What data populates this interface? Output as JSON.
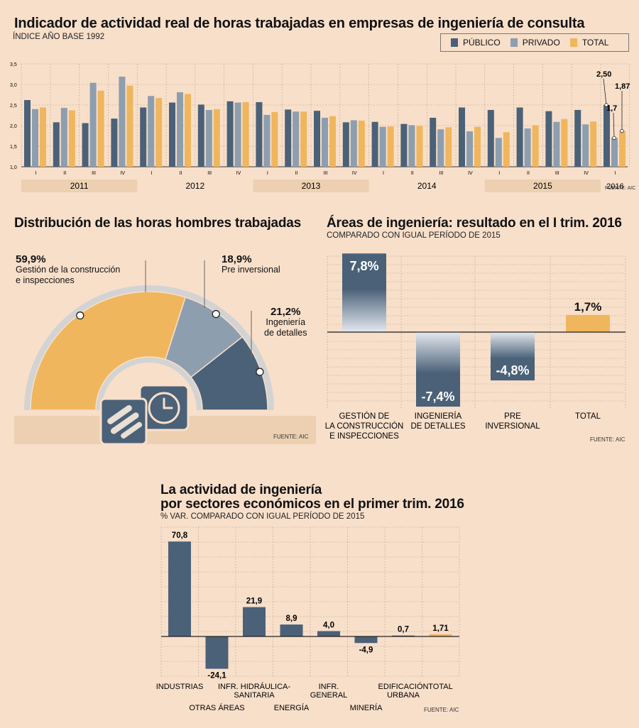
{
  "colors": {
    "publico": "#4a6178",
    "privado": "#8d9eaf",
    "total": "#f0b65d",
    "band": "#ecd0b1",
    "bg": "#f8dfca"
  },
  "chart1": {
    "title": "Indicador de actividad real de horas trabajadas en empresas de ingeniería de consulta",
    "subtitle": "ÍNDICE AÑO BASE 1992",
    "source": "FUENTE: AIC",
    "legend": [
      "PÚBLICO",
      "PRIVADO",
      "TOTAL"
    ],
    "ylim": [
      1.0,
      3.5
    ],
    "yticks": [
      "1,0",
      "1,5",
      "2,0",
      "2,5",
      "3,0",
      "3,5"
    ],
    "annotations": {
      "publico_last": "2,50",
      "privado_last": "1,7",
      "total_last": "1,87"
    }
  },
  "chart2": {
    "title": "Distribución de las horas hombres trabajadas",
    "source": "FUENTE: AIC",
    "slices": [
      {
        "pct": "59,9%",
        "label_line1": "Gestión de la construcción",
        "label_line2": "e inspecciones",
        "value": 59.9
      },
      {
        "pct": "18,9%",
        "label_line1": "Pre inversional",
        "label_line2": "",
        "value": 18.9
      },
      {
        "pct": "21,2%",
        "label_line1": "Ingeniería",
        "label_line2": "de detalles",
        "value": 21.2
      }
    ]
  },
  "chart3": {
    "title": "Áreas de ingeniería: resultado en el I trim. 2016",
    "subtitle": "COMPARADO CON IGUAL PERÍODO DE 2015",
    "source": "FUENTE: AIC",
    "labels": [
      "7,8%",
      "-7,4%",
      "-4,8%",
      "1,7%"
    ],
    "cat_lines": [
      [
        "GESTIÓN DE",
        "LA CONSTRUCCIÓN",
        "E INSPECCIONES"
      ],
      [
        "INGENIERÍA",
        "DE DETALLES"
      ],
      [
        "PRE",
        "INVERSIONAL"
      ],
      [
        "TOTAL"
      ]
    ]
  },
  "chart4": {
    "title_line1": "La actividad de ingeniería",
    "title_line2": "por sectores económicos en el primer trim. 2016",
    "subtitle": "% VAR. COMPARADO CON IGUAL PERÍODO DE 2015",
    "source": "FUENTE: AIC",
    "value_labels": [
      "70,8",
      "-24,1",
      "21,9",
      "8,9",
      "4,0",
      "-4,9",
      "0,7",
      "1,71"
    ],
    "cat_lines": [
      [
        "INDUSTRIAS"
      ],
      [
        "OTRAS ÁREAS"
      ],
      [
        "INFR. HIDRÁULICA-",
        "SANITARIA"
      ],
      [
        "ENERGÍA"
      ],
      [
        "INFR.",
        "GENERAL"
      ],
      [
        "MINERÍA"
      ],
      [
        "EDIFICACIÓN",
        "URBANA"
      ],
      [
        "TOTAL"
      ]
    ]
  },
  "chart_data": [
    {
      "type": "bar",
      "title": "Indicador de actividad real de horas trabajadas en empresas de ingeniería de consulta",
      "ylabel": "ÍNDICE AÑO BASE 1992",
      "ylim": [
        1.0,
        3.5
      ],
      "categories": [
        "I",
        "II",
        "III",
        "IV",
        "I",
        "II",
        "III",
        "IV",
        "I",
        "II",
        "III",
        "IV",
        "I",
        "II",
        "III",
        "IV",
        "I",
        "II",
        "III",
        "IV",
        "I"
      ],
      "years": [
        {
          "label": "2011",
          "shaded": true
        },
        {
          "label": "2012",
          "shaded": false
        },
        {
          "label": "2013",
          "shaded": true
        },
        {
          "label": "2014",
          "shaded": false
        },
        {
          "label": "2015",
          "shaded": true
        },
        {
          "label": "2016",
          "shaded": false
        }
      ],
      "series": [
        {
          "name": "PÚBLICO",
          "values": [
            2.62,
            2.08,
            2.06,
            2.17,
            2.44,
            2.56,
            2.51,
            2.59,
            2.57,
            2.39,
            2.36,
            2.08,
            2.09,
            2.04,
            2.19,
            2.44,
            2.38,
            2.44,
            2.35,
            2.38,
            2.5
          ]
        },
        {
          "name": "PRIVADO",
          "values": [
            2.4,
            2.43,
            3.04,
            3.19,
            2.72,
            2.81,
            2.38,
            2.56,
            2.26,
            2.34,
            2.19,
            2.13,
            1.97,
            2.01,
            1.91,
            1.86,
            1.7,
            1.93,
            2.09,
            2.03,
            1.7
          ]
        },
        {
          "name": "TOTAL",
          "values": [
            2.44,
            2.37,
            2.85,
            2.97,
            2.67,
            2.77,
            2.4,
            2.57,
            2.33,
            2.34,
            2.23,
            2.12,
            1.98,
            1.99,
            1.96,
            1.97,
            1.84,
            2.01,
            2.16,
            2.1,
            1.87
          ]
        }
      ]
    },
    {
      "type": "pie",
      "title": "Distribución de las horas hombres trabajadas",
      "categories": [
        "Gestión de la construcción e inspecciones",
        "Pre inversional",
        "Ingeniería de detalles"
      ],
      "values": [
        59.9,
        18.9,
        21.2
      ]
    },
    {
      "type": "bar",
      "title": "Áreas de ingeniería: resultado en el I trim. 2016",
      "categories": [
        "GESTIÓN DE LA CONSTRUCCIÓN E INSPECCIONES",
        "INGENIERÍA DE DETALLES",
        "PRE INVERSIONAL",
        "TOTAL"
      ],
      "values": [
        7.8,
        -7.4,
        -4.8,
        1.7
      ],
      "ylim": [
        -10,
        10
      ]
    },
    {
      "type": "bar",
      "title": "La actividad de ingeniería por sectores económicos en el primer trim. 2016",
      "categories": [
        "INDUSTRIAS",
        "OTRAS ÁREAS",
        "INFR. HIDRÁULICA-SANITARIA",
        "ENERGÍA",
        "INFR. GENERAL",
        "MINERÍA",
        "EDIFICACIÓN URBANA",
        "TOTAL"
      ],
      "values": [
        70.8,
        -24.1,
        21.9,
        8.9,
        4.0,
        -4.9,
        0.7,
        1.71
      ],
      "ylim": [
        -30,
        75
      ]
    }
  ]
}
